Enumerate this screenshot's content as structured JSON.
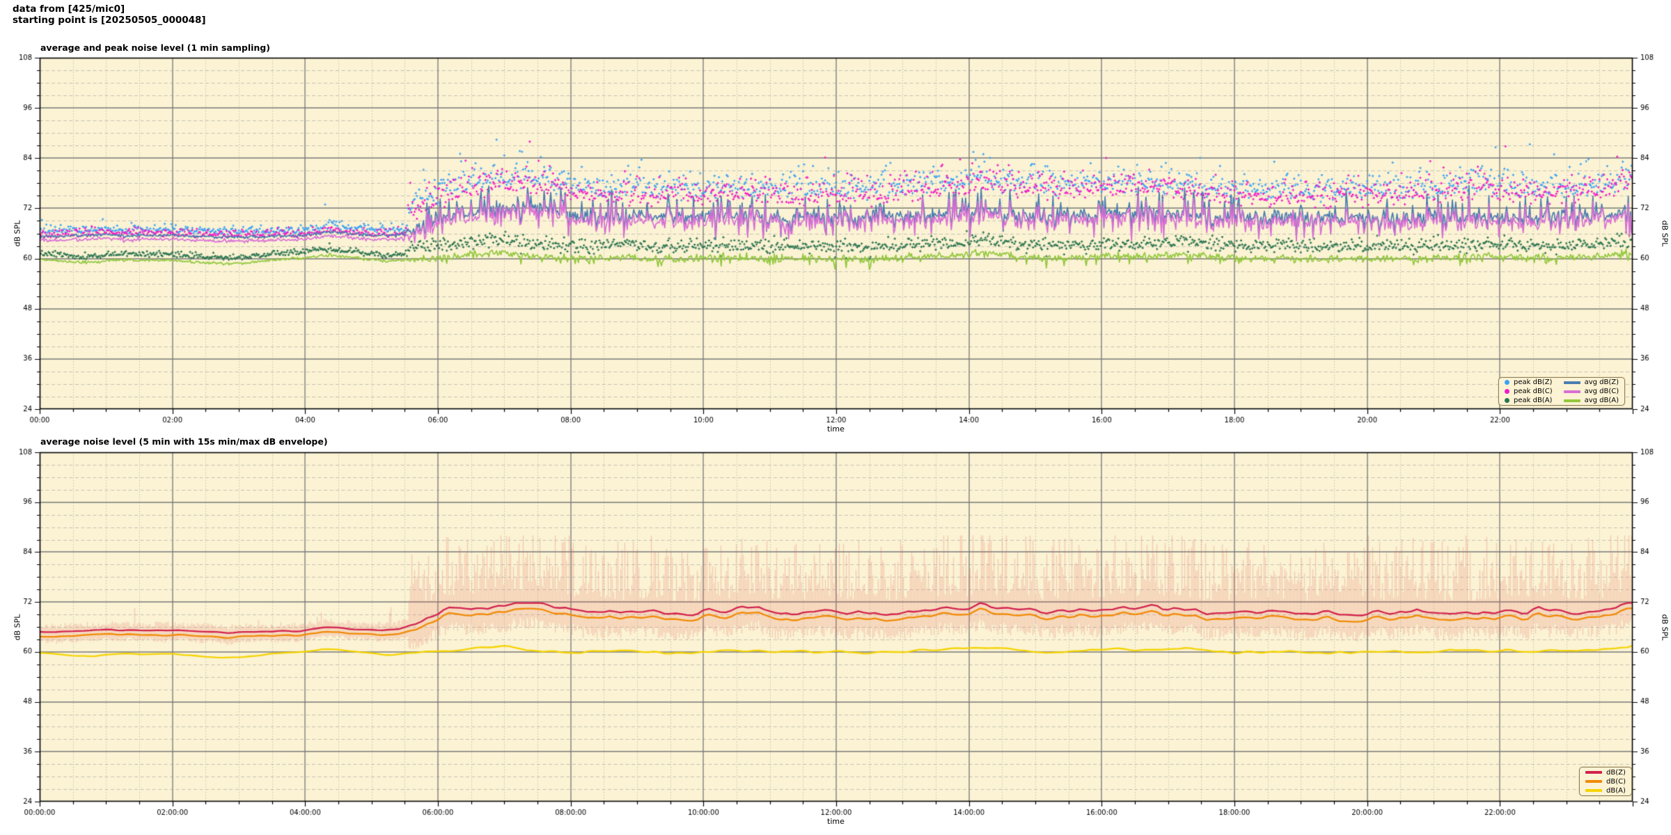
{
  "header": {
    "line1": "data from [425/mic0]",
    "line2": "starting point is [20250505_000048]"
  },
  "colors": {
    "page_bg": "#ffffff",
    "plot_bg": "#FBF3D4",
    "grid_major": "rgba(120,120,120,0.75)",
    "grid_minor": "rgba(145,145,145,0.50)",
    "border": "#000000",
    "legend_border": "#8f7f55",
    "tick_text": "#000000"
  },
  "chart_data": [
    {
      "type": "scatter+line",
      "title": "average and peak noise level (1 min sampling)",
      "xlabel": "time",
      "ylabel": "dB SPL",
      "ylabel_right": "dB SPL",
      "ylim": [
        24,
        108
      ],
      "ytick_step": 12,
      "yminor_step": 3,
      "ytick_labels": [
        "24",
        "36",
        "48",
        "60",
        "72",
        "84",
        "96",
        "108"
      ],
      "xlim_minutes": [
        0,
        1440
      ],
      "xtick_step_minutes": 120,
      "xminor_step_minutes": 30,
      "xtick_labels": [
        "00:00",
        "02:00",
        "04:00",
        "06:00",
        "08:00",
        "10:00",
        "12:00",
        "14:00",
        "16:00",
        "18:00",
        "20:00",
        "22:00"
      ],
      "grid": true,
      "legend_position": "bottom-right",
      "sampling_minutes": 1,
      "series": [
        {
          "name": "peak dB(Z)",
          "type": "scatter",
          "color": "#3AA2F5"
        },
        {
          "name": "peak dB(C)",
          "type": "scatter",
          "color": "#F318C6"
        },
        {
          "name": "peak dB(A)",
          "type": "scatter",
          "color": "#2A744E"
        },
        {
          "name": "avg dB(Z)",
          "type": "line",
          "color": "#4B7DB0"
        },
        {
          "name": "avg dB(C)",
          "type": "line",
          "color": "#D96FD4"
        },
        {
          "name": "avg dB(A)",
          "type": "line",
          "color": "#93C83D"
        }
      ],
      "keyframes_hours": {
        "avg_z": [
          [
            0,
            65.2
          ],
          [
            0.5,
            65.5
          ],
          [
            1,
            65.7
          ],
          [
            1.3,
            65.5
          ],
          [
            2,
            65.6
          ],
          [
            2.5,
            65.2
          ],
          [
            3,
            65.1
          ],
          [
            3.5,
            65.3
          ],
          [
            4,
            65.5
          ],
          [
            4.3,
            66.4
          ],
          [
            4.6,
            66.1
          ],
          [
            5,
            65.6
          ],
          [
            5.4,
            65.6
          ],
          [
            5.8,
            68.0
          ],
          [
            6.2,
            70.3
          ],
          [
            6.7,
            71.3
          ],
          [
            7,
            71.8
          ],
          [
            7.4,
            72.3
          ],
          [
            7.8,
            71.2
          ],
          [
            8.2,
            70.2
          ],
          [
            8.7,
            69.8
          ],
          [
            9.2,
            70.2
          ],
          [
            9.7,
            69.8
          ],
          [
            10.2,
            70.0
          ],
          [
            10.7,
            70.3
          ],
          [
            11.2,
            69.8
          ],
          [
            11.7,
            70.0
          ],
          [
            12.2,
            70.2
          ],
          [
            12.7,
            69.8
          ],
          [
            13.2,
            70.3
          ],
          [
            13.7,
            70.8
          ],
          [
            14.2,
            71.3
          ],
          [
            14.7,
            70.6
          ],
          [
            15.2,
            70.2
          ],
          [
            15.7,
            70.6
          ],
          [
            16.2,
            71.0
          ],
          [
            16.7,
            71.3
          ],
          [
            17.2,
            70.6
          ],
          [
            17.7,
            69.8
          ],
          [
            18.2,
            69.6
          ],
          [
            18.7,
            69.9
          ],
          [
            19.2,
            69.5
          ],
          [
            19.7,
            69.7
          ],
          [
            20.2,
            69.9
          ],
          [
            20.7,
            69.6
          ],
          [
            21.2,
            69.8
          ],
          [
            21.7,
            70.1
          ],
          [
            22.2,
            69.9
          ],
          [
            22.7,
            70.2
          ],
          [
            23.2,
            70.1
          ],
          [
            23.6,
            70.4
          ],
          [
            24,
            71.8
          ]
        ],
        "avg_a": [
          [
            0,
            59.9
          ],
          [
            0.4,
            59.3
          ],
          [
            0.8,
            59.1
          ],
          [
            1.2,
            59.8
          ],
          [
            1.6,
            59.5
          ],
          [
            2,
            59.6
          ],
          [
            2.4,
            59.1
          ],
          [
            2.8,
            58.7
          ],
          [
            3.2,
            59.1
          ],
          [
            3.6,
            59.8
          ],
          [
            4,
            60.1
          ],
          [
            4.3,
            60.9
          ],
          [
            4.7,
            60.3
          ],
          [
            5.2,
            59.4
          ],
          [
            5.7,
            59.8
          ],
          [
            6.2,
            60.3
          ],
          [
            6.7,
            61.2
          ],
          [
            7,
            61.6
          ],
          [
            7.4,
            60.6
          ],
          [
            7.8,
            60.1
          ],
          [
            8.3,
            60.2
          ],
          [
            8.8,
            60.4
          ],
          [
            9.3,
            60.1
          ],
          [
            9.8,
            59.9
          ],
          [
            10.3,
            60.4
          ],
          [
            10.8,
            60.2
          ],
          [
            11.3,
            60.5
          ],
          [
            11.8,
            60.0
          ],
          [
            12.3,
            59.8
          ],
          [
            12.8,
            60.2
          ],
          [
            13.3,
            60.4
          ],
          [
            13.8,
            60.9
          ],
          [
            14.3,
            61.2
          ],
          [
            14.8,
            60.4
          ],
          [
            15.3,
            60.1
          ],
          [
            15.8,
            60.4
          ],
          [
            16.3,
            60.8
          ],
          [
            16.8,
            60.5
          ],
          [
            17.3,
            61.0
          ],
          [
            17.8,
            60.2
          ],
          [
            18.3,
            59.9
          ],
          [
            18.8,
            60.1
          ],
          [
            19.3,
            59.7
          ],
          [
            19.8,
            60.0
          ],
          [
            20.3,
            60.2
          ],
          [
            20.8,
            60.0
          ],
          [
            21.3,
            60.3
          ],
          [
            21.8,
            60.6
          ],
          [
            22.3,
            60.4
          ],
          [
            22.8,
            60.2
          ],
          [
            23.3,
            60.5
          ],
          [
            23.7,
            61.0
          ],
          [
            24,
            61.3
          ]
        ],
        "activity": [
          [
            0,
            0
          ],
          [
            5.3,
            0
          ],
          [
            5.8,
            1
          ],
          [
            24,
            1
          ]
        ],
        "peak_boost": [
          [
            0,
            1
          ],
          [
            6,
            1
          ],
          [
            7,
            1.15
          ],
          [
            9,
            1
          ],
          [
            12.5,
            1
          ],
          [
            14,
            1.25
          ],
          [
            16,
            1.1
          ],
          [
            18,
            1
          ],
          [
            21,
            1.05
          ],
          [
            21.8,
            1.25
          ],
          [
            22.6,
            1
          ],
          [
            24,
            1.2
          ]
        ]
      }
    },
    {
      "type": "line+band",
      "title": "average noise level (5 min with 15s min/max dB envelope)",
      "xlabel": "time",
      "ylabel": "dB SPL",
      "ylabel_right": "dB SPL",
      "ylim": [
        24,
        108
      ],
      "ytick_step": 12,
      "yminor_step": 3,
      "ytick_labels": [
        "24",
        "36",
        "48",
        "60",
        "72",
        "84",
        "96",
        "108"
      ],
      "xlim_minutes": [
        0,
        1440
      ],
      "xtick_step_minutes": 120,
      "xminor_step_minutes": 30,
      "xtick_labels": [
        "00:00:00",
        "02:00:00",
        "04:00:00",
        "06:00:00",
        "08:00:00",
        "10:00:00",
        "12:00:00",
        "14:00:00",
        "16:00:00",
        "18:00:00",
        "20:00:00",
        "22:00:00"
      ],
      "grid": true,
      "legend_position": "bottom-right",
      "sampling_minutes": 5,
      "band_color": "rgba(228,110,96,0.30)",
      "series": [
        {
          "name": "dB(Z)",
          "type": "line",
          "color": "#D2234E"
        },
        {
          "name": "dB(C)",
          "type": "line",
          "color": "#F18A06"
        },
        {
          "name": "dB(A)",
          "type": "line",
          "color": "#F5D300"
        }
      ]
    }
  ]
}
